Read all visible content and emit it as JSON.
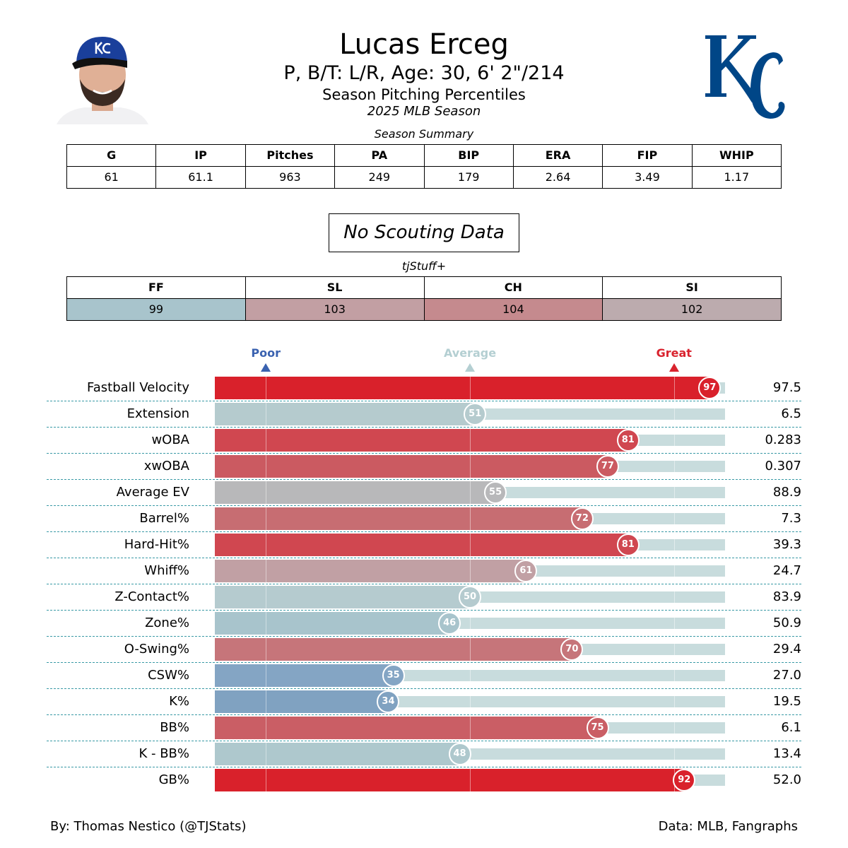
{
  "header": {
    "name": "Lucas Erceg",
    "bio": "P, B/T: L/R, Age: 30, 6' 2\"/214",
    "subtitle": "Season Pitching Percentiles",
    "season": "2025 MLB Season",
    "logo_text": "KC",
    "team_color": "#004687"
  },
  "season_summary": {
    "title": "Season Summary",
    "headers": [
      "G",
      "IP",
      "Pitches",
      "PA",
      "BIP",
      "ERA",
      "FIP",
      "WHIP"
    ],
    "values": [
      "61",
      "61.1",
      "963",
      "249",
      "179",
      "2.64",
      "3.49",
      "1.17"
    ]
  },
  "scouting": {
    "text": "No Scouting Data"
  },
  "tjstuff": {
    "title": "tjStuff+",
    "headers": [
      "FF",
      "SL",
      "CH",
      "SI"
    ],
    "values": [
      "99",
      "103",
      "104",
      "102"
    ],
    "colors": [
      "#a8c4cc",
      "#c29fa3",
      "#c58a8e",
      "#bcabae"
    ]
  },
  "chart_data": {
    "type": "bar",
    "orientation": "horizontal",
    "xlim": [
      0,
      100
    ],
    "markers": [
      {
        "label": "Poor",
        "value": 10,
        "color": "#3a62b0"
      },
      {
        "label": "Average",
        "value": 50,
        "color": "#b4cfd2"
      },
      {
        "label": "Great",
        "value": 90,
        "color": "#d9232e"
      }
    ],
    "rows": [
      {
        "label": "Fastball Velocity",
        "percentile": 97,
        "value": "97.5",
        "color": "#d9212b"
      },
      {
        "label": "Extension",
        "percentile": 51,
        "value": "6.5",
        "color": "#b5cbce"
      },
      {
        "label": "wOBA",
        "percentile": 81,
        "value": "0.283",
        "color": "#d04750"
      },
      {
        "label": "xwOBA",
        "percentile": 77,
        "value": "0.307",
        "color": "#cb5a61"
      },
      {
        "label": "Average EV",
        "percentile": 55,
        "value": "88.9",
        "color": "#b8b8ba"
      },
      {
        "label": "Barrel%",
        "percentile": 72,
        "value": "7.3",
        "color": "#c76d72"
      },
      {
        "label": "Hard-Hit%",
        "percentile": 81,
        "value": "39.3",
        "color": "#d04750"
      },
      {
        "label": "Whiff%",
        "percentile": 61,
        "value": "24.7",
        "color": "#c1a0a4"
      },
      {
        "label": "Z-Contact%",
        "percentile": 50,
        "value": "83.9",
        "color": "#b5cbcf"
      },
      {
        "label": "Zone%",
        "percentile": 46,
        "value": "50.9",
        "color": "#a8c4cc"
      },
      {
        "label": "O-Swing%",
        "percentile": 70,
        "value": "29.4",
        "color": "#c6757a"
      },
      {
        "label": "CSW%",
        "percentile": 35,
        "value": "27.0",
        "color": "#84a5c4"
      },
      {
        "label": "K%",
        "percentile": 34,
        "value": "19.5",
        "color": "#80a2c1"
      },
      {
        "label": "BB%",
        "percentile": 75,
        "value": "6.1",
        "color": "#ca5e65"
      },
      {
        "label": "K - BB%",
        "percentile": 48,
        "value": "13.4",
        "color": "#aec8cd"
      },
      {
        "label": "GB%",
        "percentile": 92,
        "value": "52.0",
        "color": "#d9212b"
      }
    ],
    "track_color": "#c8dcdd"
  },
  "footer": {
    "left": "By: Thomas Nestico (@TJStats)",
    "right": "Data: MLB, Fangraphs"
  }
}
